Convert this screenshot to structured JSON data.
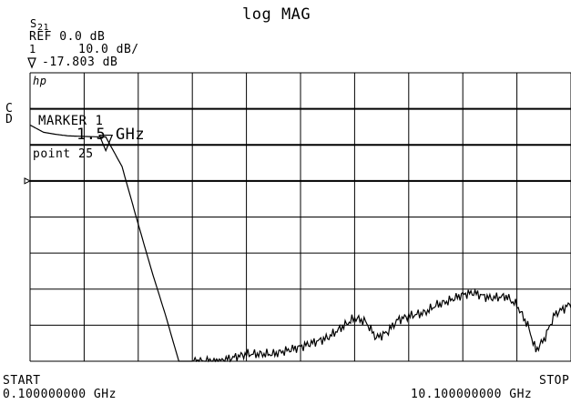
{
  "header": {
    "format": "log MAG",
    "param_s": "S",
    "param_sub": "21",
    "ref": "REF 0.0 dB",
    "channel": "1",
    "scale": "10.0 dB/",
    "marker_value": "-17.803 dB"
  },
  "side": {
    "c_label": "C",
    "d_label": "D",
    "hp_label": "hp"
  },
  "marker_box": {
    "title": "MARKER 1",
    "freq": "1.5 GHz",
    "point": "point 25"
  },
  "footer": {
    "start_label": "START",
    "start_value": "0.100000000 GHz",
    "stop_label": "STOP",
    "stop_value": "10.100000000 GHz"
  },
  "chart_data": {
    "type": "line",
    "title": "log MAG",
    "x_unit": "GHz",
    "y_unit": "dB",
    "xlim": [
      0.1,
      10.1
    ],
    "ylim": [
      -80,
      0
    ],
    "x_divisions": 10,
    "y_divisions": 8,
    "ref_level_db": 0.0,
    "scale_db_per_div": 10.0,
    "grid": true,
    "marker": {
      "x": 1.5,
      "y": -17.803,
      "label": "1"
    },
    "series": [
      {
        "x": [
          0.1,
          0.35,
          0.55,
          0.8,
          1.0,
          1.2,
          1.5,
          1.8,
          2.1,
          2.35,
          2.6,
          2.85,
          3.1,
          3.6,
          4.1,
          4.6,
          5.1,
          5.6,
          6.1,
          6.3,
          6.5,
          6.7,
          6.9,
          7.1,
          7.4,
          7.6,
          7.8,
          8.1,
          8.3,
          8.6,
          8.9,
          9.1,
          9.3,
          9.45,
          9.6,
          9.8,
          10.1
        ],
        "y": [
          -14.5,
          -16.5,
          -17.0,
          -17.5,
          -17.6,
          -17.7,
          -17.8,
          -26.0,
          -42.0,
          -55.0,
          -67.0,
          -80.0,
          -80.0,
          -80.0,
          -78.0,
          -78.0,
          -76.0,
          -73.5,
          -68.0,
          -69.0,
          -73.5,
          -72.0,
          -68.5,
          -67.5,
          -66.5,
          -64.5,
          -63.5,
          -61.5,
          -61.0,
          -62.5,
          -62.0,
          -64.5,
          -70.0,
          -77.0,
          -74.0,
          -67.0,
          -64.0
        ]
      }
    ]
  }
}
